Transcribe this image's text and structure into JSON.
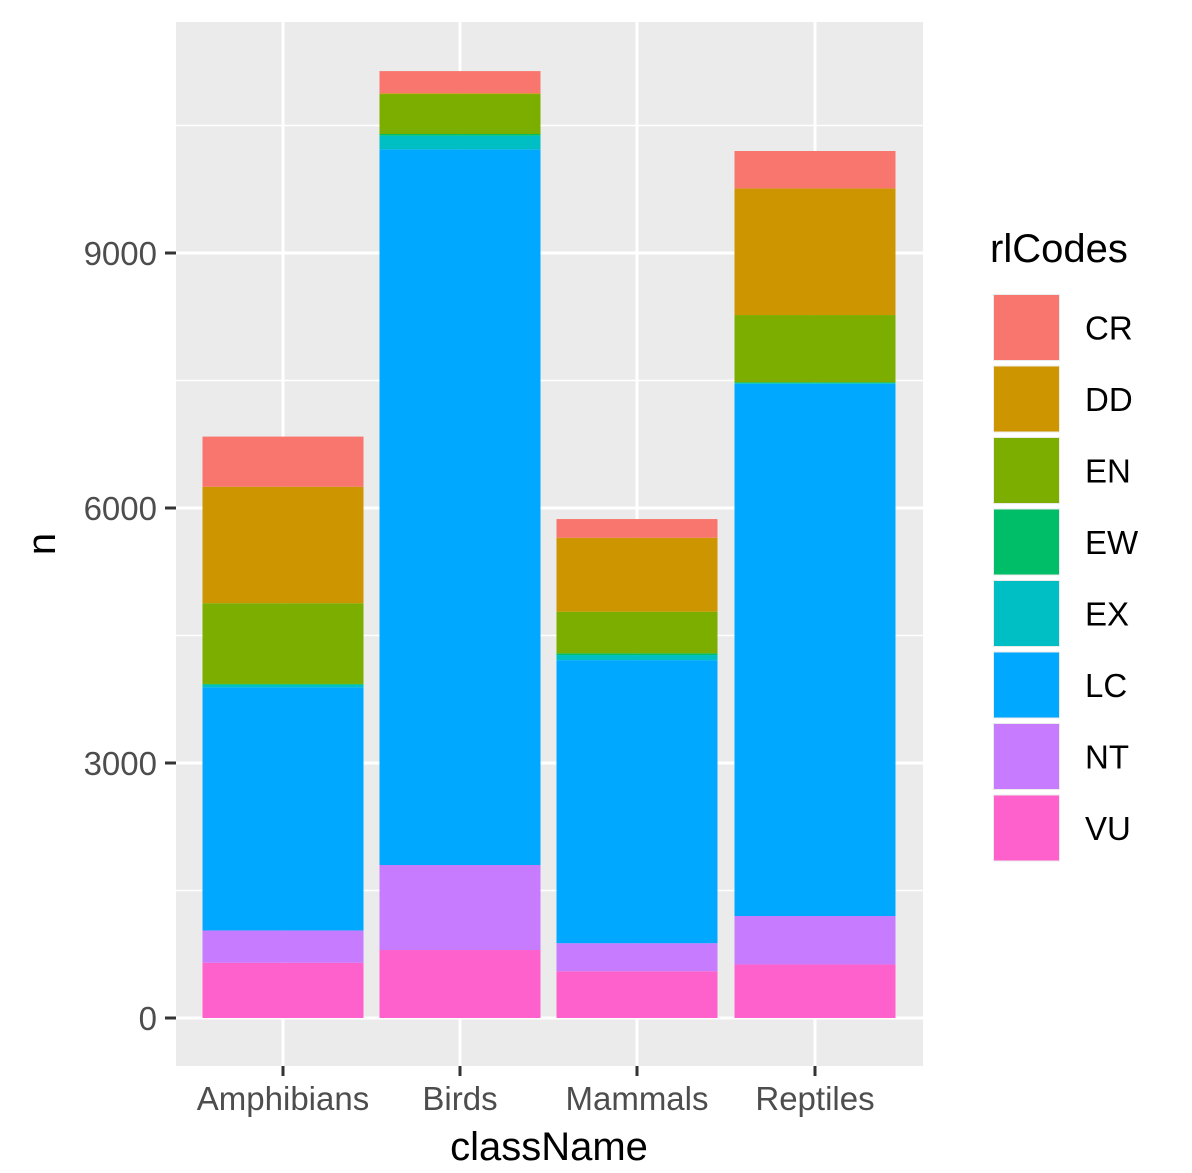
{
  "chart_data": {
    "type": "bar",
    "stacked": true,
    "title": "",
    "xlabel": "className",
    "ylabel": "n",
    "ylim": [
      -900,
      11800
    ],
    "yticks": [
      0,
      3000,
      6000,
      9000
    ],
    "categories": [
      "Amphibians",
      "Birds",
      "Mammals",
      "Reptiles"
    ],
    "legend": {
      "title": "rlCodes",
      "position": "right",
      "entries": [
        "CR",
        "DD",
        "EN",
        "EW",
        "EX",
        "LC",
        "NT",
        "VU"
      ]
    },
    "colors": {
      "CR": "#F8766D",
      "DD": "#CD9600",
      "EN": "#7CAE00",
      "EW": "#00BE67",
      "EX": "#00BFC4",
      "LC": "#00A9FF",
      "NT": "#C77CFF",
      "VU": "#FF61CC",
      "panel": "#EBEBEB",
      "grid": "#FFFFFF"
    },
    "series": [
      {
        "name": "VU",
        "values": [
          650,
          800,
          550,
          630
        ]
      },
      {
        "name": "NT",
        "values": [
          380,
          1000,
          330,
          570
        ]
      },
      {
        "name": "LC",
        "values": [
          2860,
          8420,
          3330,
          6260
        ]
      },
      {
        "name": "EX",
        "values": [
          30,
          160,
          60,
          10
        ]
      },
      {
        "name": "EW",
        "values": [
          10,
          20,
          20,
          10
        ]
      },
      {
        "name": "EN",
        "values": [
          950,
          470,
          490,
          790
        ]
      },
      {
        "name": "DD",
        "values": [
          1370,
          10,
          870,
          1490
        ]
      },
      {
        "name": "CR",
        "values": [
          590,
          260,
          220,
          440
        ]
      }
    ]
  }
}
